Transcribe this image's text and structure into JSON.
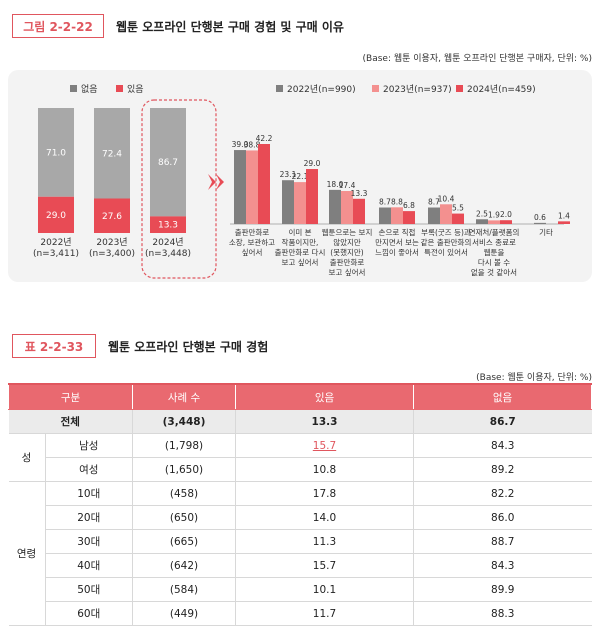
{
  "figure": {
    "badge": "그림 2-2-22",
    "title": "웹툰 오프라인 단행본 구매 경험 및 구매 이유",
    "base_note": "(Base: 웹툰 이용자, 웹툰 오프라인 단행본 구매자, 단위: %)",
    "colors": {
      "accent": "#e0565e",
      "gray": "#a8a8a8",
      "light_red": "#f3908f",
      "red": "#e84b55",
      "dark_gray": "#7f7f7f"
    }
  },
  "chart_data": [
    {
      "type": "bar",
      "stacked": true,
      "legend": [
        "없음",
        "있음"
      ],
      "categories": [
        "2022년\n(n=3,411)",
        "2023년\n(n=3,400)",
        "2024년\n(n=3,448)"
      ],
      "category_labels": [
        [
          "2022년",
          "(n=3,411)"
        ],
        [
          "2023년",
          "(n=3,400)"
        ],
        [
          "2024년",
          "(n=3,448)"
        ]
      ],
      "series": [
        {
          "name": "없음",
          "values": [
            71.0,
            72.4,
            86.7
          ],
          "labels": [
            "71.0",
            "72.4",
            "86.7"
          ]
        },
        {
          "name": "있음",
          "values": [
            29.0,
            27.6,
            13.3
          ],
          "labels": [
            "29.0",
            "27.6",
            "13.3"
          ]
        }
      ],
      "ylim": [
        0,
        100
      ]
    },
    {
      "type": "bar",
      "legend": [
        "2022년(n=990)",
        "2023년(n=937)",
        "2024년(n=459)"
      ],
      "categories": [
        "출판만화로 소장, 보관하고 싶어서",
        "이미 본 작품이지만, 출판만화로 다시 보고 싶어서",
        "웹툰으로는 보지 않았지만 (못했지만) 출판만화로 보고 싶어서",
        "손으로 직접 만지면서 보는 느낌이 좋아서",
        "부록(굿즈 등)과 같은 출판만화의 특전이 있어서",
        "연재처/플랫폼의 서비스 종료로 웹툰을 다시 볼 수 없을 것 같아서",
        "기타"
      ],
      "category_labels": [
        [
          "출판만화로",
          "소장, 보관하고",
          "싶어서"
        ],
        [
          "이미 본",
          "작품이지만,",
          "출판만화로 다시",
          "보고 싶어서"
        ],
        [
          "웹툰으로는 보지",
          "않았지만",
          "(못했지만)",
          "출판만화로",
          "보고 싶어서"
        ],
        [
          "손으로 직접",
          "만지면서 보는",
          "느낌이 좋아서"
        ],
        [
          "부록(굿즈 등)과",
          "같은 출판만화의",
          "특전이 있어서"
        ],
        [
          "연재처/플랫폼의",
          "서비스 종료로",
          "웹툰을",
          "다시 볼 수",
          "없을 것 같아서"
        ],
        [
          "기타"
        ]
      ],
      "series": [
        {
          "name": "2022년(n=990)",
          "values": [
            39.0,
            23.1,
            18.0,
            8.7,
            8.7,
            2.5,
            0.6
          ],
          "labels": [
            "39.0",
            "23.1",
            "18.0",
            "8.7",
            "8.7",
            "2.5",
            "0.6"
          ]
        },
        {
          "name": "2023년(n=937)",
          "values": [
            38.8,
            22.1,
            17.4,
            8.8,
            10.4,
            1.9,
            0
          ],
          "labels": [
            "38.8",
            "22.1",
            "17.4",
            "8.8",
            "10.4",
            "1.9",
            ""
          ]
        },
        {
          "name": "2024년(n=459)",
          "values": [
            42.2,
            29.0,
            13.3,
            6.8,
            5.5,
            2.0,
            1.4
          ],
          "labels": [
            "42.2",
            "29.0",
            "13.3",
            "6.8",
            "5.5",
            "2.0",
            "1.4"
          ]
        }
      ],
      "ylim": [
        0,
        45
      ]
    }
  ],
  "table": {
    "badge": "표 2-2-33",
    "title": "웹툰 오프라인 단행본 구매 경험",
    "base_note": "(Base: 웹툰 이용자, 단위: %)",
    "headers": [
      "구분",
      "사례 수",
      "있음",
      "없음"
    ],
    "total": {
      "label": "전체",
      "n": "(3,448)",
      "yes": "13.3",
      "no": "86.7"
    },
    "groups": [
      {
        "label": "성",
        "rows": [
          {
            "label": "남성",
            "n": "(1,798)",
            "yes": "15.7",
            "no": "84.3",
            "highlight": true
          },
          {
            "label": "여성",
            "n": "(1,650)",
            "yes": "10.8",
            "no": "89.2"
          }
        ]
      },
      {
        "label": "연령",
        "rows": [
          {
            "label": "10대",
            "n": "(458)",
            "yes": "17.8",
            "no": "82.2"
          },
          {
            "label": "20대",
            "n": "(650)",
            "yes": "14.0",
            "no": "86.0"
          },
          {
            "label": "30대",
            "n": "(665)",
            "yes": "11.3",
            "no": "88.7"
          },
          {
            "label": "40대",
            "n": "(642)",
            "yes": "15.7",
            "no": "84.3"
          },
          {
            "label": "50대",
            "n": "(584)",
            "yes": "10.1",
            "no": "89.9"
          },
          {
            "label": "60대",
            "n": "(449)",
            "yes": "11.7",
            "no": "88.3"
          }
        ]
      }
    ]
  }
}
